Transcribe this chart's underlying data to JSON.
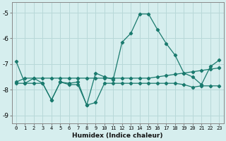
{
  "xlabel": "Humidex (Indice chaleur)",
  "ylabel": "",
  "xlim": [
    -0.5,
    23.5
  ],
  "ylim": [
    -9.3,
    -4.6
  ],
  "yticks": [
    -9,
    -8,
    -7,
    -6,
    -5
  ],
  "xticks": [
    0,
    1,
    2,
    3,
    4,
    5,
    6,
    7,
    8,
    9,
    10,
    11,
    12,
    13,
    14,
    15,
    16,
    17,
    18,
    19,
    20,
    21,
    22,
    23
  ],
  "background_color": "#d6eeee",
  "grid_color": "#b8d8d8",
  "line_color": "#1a7a6e",
  "line1_x": [
    0,
    1,
    2,
    3,
    4,
    5,
    6,
    7,
    8,
    9,
    10,
    11,
    12,
    13,
    14,
    15,
    16,
    17,
    18,
    19,
    20,
    21,
    22,
    23
  ],
  "line1_y": [
    -6.9,
    -7.75,
    -7.55,
    -7.75,
    -8.4,
    -7.7,
    -7.75,
    -7.7,
    -8.6,
    -7.35,
    -7.5,
    -7.6,
    -6.15,
    -5.8,
    -5.05,
    -5.05,
    -5.65,
    -6.2,
    -6.65,
    -7.35,
    -7.5,
    -7.8,
    -7.1,
    -6.85
  ],
  "line2_x": [
    0,
    1,
    2,
    3,
    4,
    5,
    6,
    7,
    8,
    9,
    10,
    11,
    12,
    13,
    14,
    15,
    16,
    17,
    18,
    19,
    20,
    21,
    22,
    23
  ],
  "line2_y": [
    -7.7,
    -7.55,
    -7.55,
    -7.55,
    -7.55,
    -7.55,
    -7.55,
    -7.55,
    -7.55,
    -7.55,
    -7.55,
    -7.55,
    -7.55,
    -7.55,
    -7.55,
    -7.55,
    -7.5,
    -7.45,
    -7.4,
    -7.35,
    -7.3,
    -7.25,
    -7.2,
    -7.15
  ],
  "line3_x": [
    0,
    1,
    2,
    3,
    4,
    5,
    6,
    7,
    8,
    9,
    10,
    11,
    12,
    13,
    14,
    15,
    16,
    17,
    18,
    19,
    20,
    21,
    22,
    23
  ],
  "line3_y": [
    -7.75,
    -7.75,
    -7.75,
    -7.75,
    -8.4,
    -7.7,
    -7.8,
    -7.8,
    -8.6,
    -8.5,
    -7.75,
    -7.75,
    -7.75,
    -7.75,
    -7.75,
    -7.75,
    -7.75,
    -7.75,
    -7.75,
    -7.8,
    -7.9,
    -7.85,
    -7.85,
    -7.85
  ]
}
